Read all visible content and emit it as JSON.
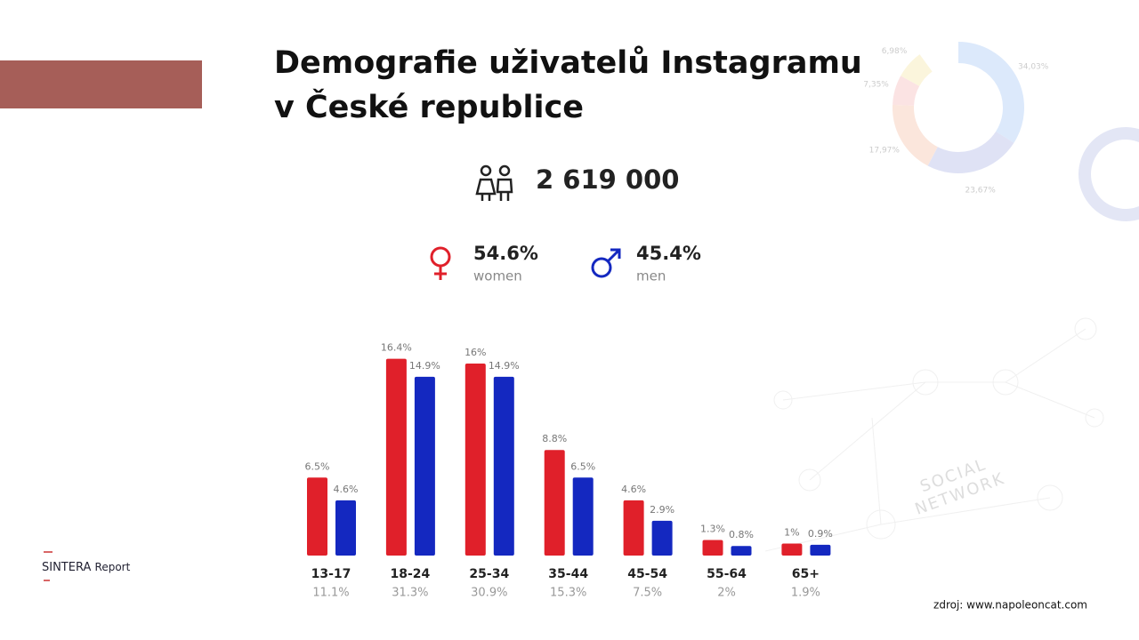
{
  "header": {
    "title_lines": [
      "Demografie uživatelů Instagramu",
      "v České republice"
    ],
    "total_users": "2 619 000",
    "gender": [
      {
        "share": "54.6%",
        "label": "women"
      },
      {
        "share": "45.4%",
        "label": "men"
      }
    ]
  },
  "chart_data": {
    "type": "bar",
    "categories": [
      "13-17",
      "18-24",
      "25-34",
      "35-44",
      "45-54",
      "55-64",
      "65+"
    ],
    "category_shares": [
      11.1,
      31.3,
      30.9,
      15.3,
      7.5,
      2,
      1.9
    ],
    "category_share_labels": [
      "11.1%",
      "31.3%",
      "30.9%",
      "15.3%",
      "7.5%",
      "2%",
      "1.9%"
    ],
    "series": [
      {
        "name": "women",
        "color": "#e0202a",
        "values": [
          6.5,
          16.4,
          16,
          8.8,
          4.6,
          1.3,
          1
        ],
        "value_labels": [
          "6.5%",
          "16.4%",
          "16%",
          "8.8%",
          "4.6%",
          "1.3%",
          "1%"
        ]
      },
      {
        "name": "men",
        "color": "#1428c0",
        "values": [
          4.6,
          14.9,
          14.9,
          6.5,
          2.9,
          0.8,
          0.9
        ],
        "value_labels": [
          "4.6%",
          "14.9%",
          "14.9%",
          "6.5%",
          "2.9%",
          "0.8%",
          "0.9%"
        ]
      }
    ]
  },
  "background": {
    "donut_values": [
      34.03,
      23.67,
      17.97,
      7.35,
      6.98
    ],
    "donut_labels": [
      "34,03%",
      "23,67%",
      "17,97%",
      "7,35%",
      "6,98%"
    ],
    "donut_colors": [
      "#dce9fb",
      "#dfe2f5",
      "#fbe6dc",
      "#fbe3e3",
      "#fbf5dc"
    ],
    "watermark": [
      "SOCIAL",
      "NETWORK"
    ]
  },
  "footer": {
    "brand": "SINTERA",
    "brand_suffix": "Report",
    "source": "zdroj: www.napoleoncat.com"
  }
}
